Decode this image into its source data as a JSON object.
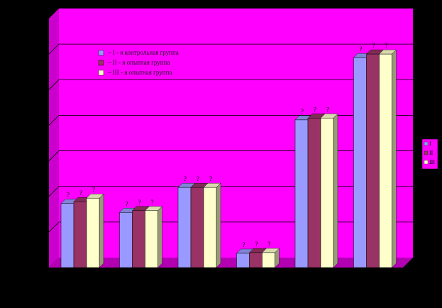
{
  "colors": {
    "background": "#000000",
    "plot_wall": "#ff00ff",
    "plot_side": "#cc00cc",
    "plot_floor": "#b300b3",
    "gridline": "#000000"
  },
  "inner_legend": [
    {
      "label": "– I - я контрольная группа",
      "color": "#9999ff"
    },
    {
      "label": "– II - я опытная группа",
      "color": "#993366"
    },
    {
      "label": "– III - я опытная группа",
      "color": "#ffffcc"
    }
  ],
  "chart_data": {
    "type": "bar",
    "categories": [
      "",
      "",
      "",
      "",
      "",
      ""
    ],
    "series": [
      {
        "name": "I",
        "color": "#9999ff",
        "values": [
          1.8,
          1.55,
          2.25,
          0.4,
          4.15,
          5.9
        ]
      },
      {
        "name": "II",
        "color": "#993366",
        "values": [
          1.85,
          1.6,
          2.25,
          0.42,
          4.2,
          6.0
        ]
      },
      {
        "name": "III",
        "color": "#ffffcc",
        "values": [
          1.95,
          1.6,
          2.25,
          0.42,
          4.2,
          6.0
        ]
      }
    ],
    "data_labels": [
      [
        "?",
        "?",
        "?"
      ],
      [
        "?",
        "?",
        "?"
      ],
      [
        "?",
        "?",
        "?"
      ],
      [
        "?",
        "?",
        "?"
      ],
      [
        "?",
        "?",
        "?"
      ],
      [
        "?",
        "?",
        "?"
      ]
    ],
    "ylim": [
      0,
      7
    ],
    "grid": true,
    "legend_position": "right",
    "title": "",
    "xlabel": "",
    "ylabel": ""
  }
}
